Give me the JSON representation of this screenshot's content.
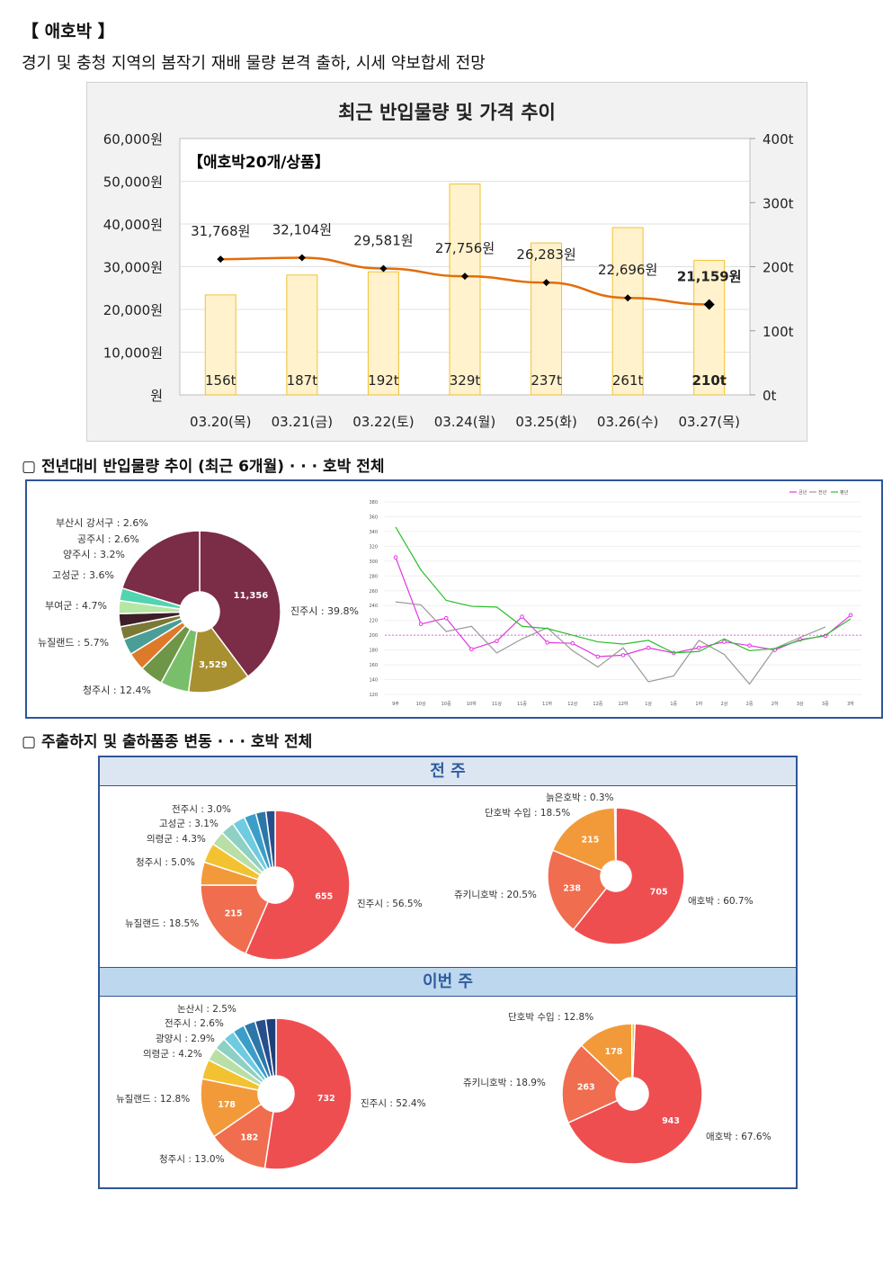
{
  "header": {
    "title": "【 애호박 】",
    "subtitle": "경기 및 충청 지역의 봄작기 재배 물량 본격 출하, 시세 약보합세 전망"
  },
  "sections": {
    "distribution": "▢ 전년대비 반입물량 추이 (최근 6개월) · · · 호박 전체",
    "shipment": "▢ 주출하지 및 출하품종 변동 · · · 호박 전체"
  },
  "chart_data": [
    {
      "type": "bar",
      "title": "최근 반입물량 및 가격 추이",
      "annotation": "【애호박20개/상품】",
      "categories": [
        "03.20(목)",
        "03.21(금)",
        "03.22(토)",
        "03.24(월)",
        "03.25(화)",
        "03.26(수)",
        "03.27(목)"
      ],
      "series": [
        {
          "kind": "bar",
          "axis": "right",
          "values": [
            156,
            187,
            192,
            329,
            237,
            261,
            210
          ],
          "labels": [
            "156t",
            "187t",
            "192t",
            "329t",
            "237t",
            "261t",
            "210t"
          ]
        },
        {
          "kind": "line",
          "axis": "left",
          "values": [
            31768,
            32104,
            29581,
            27756,
            26283,
            22696,
            21159
          ],
          "labels": [
            "31,768원",
            "32,104원",
            "29,581원",
            "27,756원",
            "26,283원",
            "22,696원",
            "21,159원"
          ]
        }
      ],
      "y_left_ticks": [
        "60,000원",
        "50,000원",
        "40,000원",
        "30,000원",
        "20,000원",
        "10,000원",
        "원"
      ],
      "y_right_ticks": [
        "400t",
        "300t",
        "200t",
        "100t",
        "0t"
      ],
      "ylim_left": [
        0,
        60000
      ],
      "ylim_right": [
        0,
        400
      ],
      "colors": {
        "bar_fill": "#fff2cc",
        "bar_stroke": "#f1c232",
        "line": "#e46c0a",
        "marker": "#000000"
      }
    },
    {
      "type": "pie",
      "slices": [
        {
          "label": "진주시 : 39.8%",
          "value": 39.8,
          "inner": "11,356",
          "color": "#7b2c46"
        },
        {
          "label": "청주시 : 12.4%",
          "value": 12.4,
          "inner": "3,529",
          "color": "#a89030"
        },
        {
          "label": "뉴질랜드 : 5.7%",
          "value": 5.7,
          "inner": "",
          "color": "#79bf6b"
        },
        {
          "label": "부여군 : 4.7%",
          "value": 4.7,
          "inner": "",
          "color": "#6e9646"
        },
        {
          "label": "고성군 : 3.6%",
          "value": 3.6,
          "inner": "",
          "color": "#dd7a2a"
        },
        {
          "label": "양주시 : 3.2%",
          "value": 3.2,
          "inner": "",
          "color": "#4a9e96"
        },
        {
          "label": "공주시 : 2.6%",
          "value": 2.6,
          "inner": "",
          "color": "#7a7a36"
        },
        {
          "label": "부산시 강서구 : 2.6%",
          "value": 2.6,
          "inner": "",
          "color": "#3e1e28"
        },
        {
          "label": "",
          "value": 2.6,
          "inner": "",
          "color": "#b6e6a3"
        },
        {
          "label": "",
          "value": 2.5,
          "inner": "",
          "color": "#52d4b0"
        },
        {
          "label": "",
          "value": 20.3,
          "inner": "",
          "color": "#7b2c46"
        }
      ]
    },
    {
      "type": "line",
      "x": [
        "9주",
        "10상",
        "10중",
        "10하",
        "11상",
        "11중",
        "11하",
        "12상",
        "12중",
        "12하",
        "1상",
        "1중",
        "1하",
        "2상",
        "2중",
        "2하",
        "3상",
        "3중",
        "3하"
      ],
      "ylim": [
        120,
        380
      ],
      "y_ticks": [
        "380",
        "360",
        "340",
        "320",
        "300",
        "280",
        "260",
        "240",
        "220",
        "200",
        "180",
        "160",
        "140",
        "120"
      ],
      "legend": [
        "금년",
        "전년",
        "평년"
      ],
      "series": [
        {
          "name": "금년",
          "color": "#e236e2",
          "values": [
            305,
            215,
            223,
            181,
            192,
            225,
            190,
            189,
            171,
            173,
            183,
            176,
            183,
            191,
            186,
            180,
            194,
            199,
            227
          ]
        },
        {
          "name": "전년",
          "color": "#999999",
          "values": [
            245,
            241,
            205,
            212,
            176,
            195,
            210,
            179,
            157,
            183,
            137,
            145,
            193,
            174,
            134,
            182,
            197,
            211,
            null
          ]
        },
        {
          "name": "평년",
          "color": "#2bbf2b",
          "values": [
            346,
            288,
            247,
            239,
            238,
            212,
            209,
            200,
            191,
            188,
            193,
            176,
            178,
            195,
            179,
            182,
            193,
            200,
            222
          ]
        }
      ],
      "reference_line": 200
    },
    {
      "type": "pie",
      "panel": "전 주",
      "slices": [
        {
          "label": "진주시 : 56.5%",
          "value": 56.5,
          "inner": "655",
          "color": "#ef4e51"
        },
        {
          "label": "뉴질랜드 : 18.5%",
          "value": 18.5,
          "inner": "215",
          "color": "#f06d4f"
        },
        {
          "label": "청주시 : 5.0%",
          "value": 5.0,
          "inner": "",
          "color": "#f29a3a"
        },
        {
          "label": "의령군 : 4.3%",
          "value": 4.3,
          "inner": "",
          "color": "#f2c230"
        },
        {
          "label": "고성군 : 3.1%",
          "value": 3.1,
          "inner": "",
          "color": "#b9dfa7"
        },
        {
          "label": "전주시 : 3.0%",
          "value": 3.0,
          "inner": "",
          "color": "#8ed0c4"
        },
        {
          "label": "",
          "value": 2.8,
          "inner": "",
          "color": "#6fcbe0"
        },
        {
          "label": "",
          "value": 2.6,
          "inner": "",
          "color": "#3b9ec8"
        },
        {
          "label": "",
          "value": 2.2,
          "inner": "",
          "color": "#2d77a8"
        },
        {
          "label": "",
          "value": 2.0,
          "inner": "",
          "color": "#264f8c"
        }
      ]
    },
    {
      "type": "pie",
      "panel": "전 주",
      "slices": [
        {
          "label": "애호박 : 60.7%",
          "value": 60.7,
          "inner": "705",
          "color": "#ef4e51"
        },
        {
          "label": "쥬키니호박 : 20.5%",
          "value": 20.5,
          "inner": "238",
          "color": "#f06d4f"
        },
        {
          "label": "단호박 수입 : 18.5%",
          "value": 18.5,
          "inner": "215",
          "color": "#f29a3a"
        },
        {
          "label": "늙은호박 : 0.3%",
          "value": 0.3,
          "inner": "",
          "color": "#f2c230"
        }
      ]
    },
    {
      "type": "pie",
      "panel": "이번 주",
      "slices": [
        {
          "label": "진주시 : 52.4%",
          "value": 52.4,
          "inner": "732",
          "color": "#ef4e51"
        },
        {
          "label": "청주시 : 13.0%",
          "value": 13.0,
          "inner": "182",
          "color": "#f06d4f"
        },
        {
          "label": "뉴질랜드 : 12.8%",
          "value": 12.8,
          "inner": "178",
          "color": "#f29a3a"
        },
        {
          "label": "의령군 : 4.2%",
          "value": 4.2,
          "inner": "",
          "color": "#f2c230"
        },
        {
          "label": "광양시 : 2.9%",
          "value": 2.9,
          "inner": "",
          "color": "#b9dfa7"
        },
        {
          "label": "전주시 : 2.6%",
          "value": 2.6,
          "inner": "",
          "color": "#8ed0c4"
        },
        {
          "label": "논산시 : 2.5%",
          "value": 2.5,
          "inner": "",
          "color": "#6fcbe0"
        },
        {
          "label": "",
          "value": 2.6,
          "inner": "",
          "color": "#3b9ec8"
        },
        {
          "label": "",
          "value": 2.5,
          "inner": "",
          "color": "#2d77a8"
        },
        {
          "label": "",
          "value": 2.3,
          "inner": "",
          "color": "#264f8c"
        },
        {
          "label": "",
          "value": 2.2,
          "inner": "",
          "color": "#1f3f7a"
        }
      ]
    },
    {
      "type": "pie",
      "panel": "이번 주",
      "slices": [
        {
          "label": "애호박 : 67.6%",
          "value": 67.6,
          "inner": "943",
          "color": "#ef4e51"
        },
        {
          "label": "쥬키니호박 : 18.9%",
          "value": 18.9,
          "inner": "263",
          "color": "#f06d4f"
        },
        {
          "label": "단호박 수입 : 12.8%",
          "value": 12.8,
          "inner": "178",
          "color": "#f29a3a"
        },
        {
          "label": "",
          "value": 0.7,
          "inner": "",
          "color": "#f2c230"
        }
      ]
    }
  ],
  "panels": {
    "prev_week": "전 주",
    "this_week": "이번 주"
  }
}
